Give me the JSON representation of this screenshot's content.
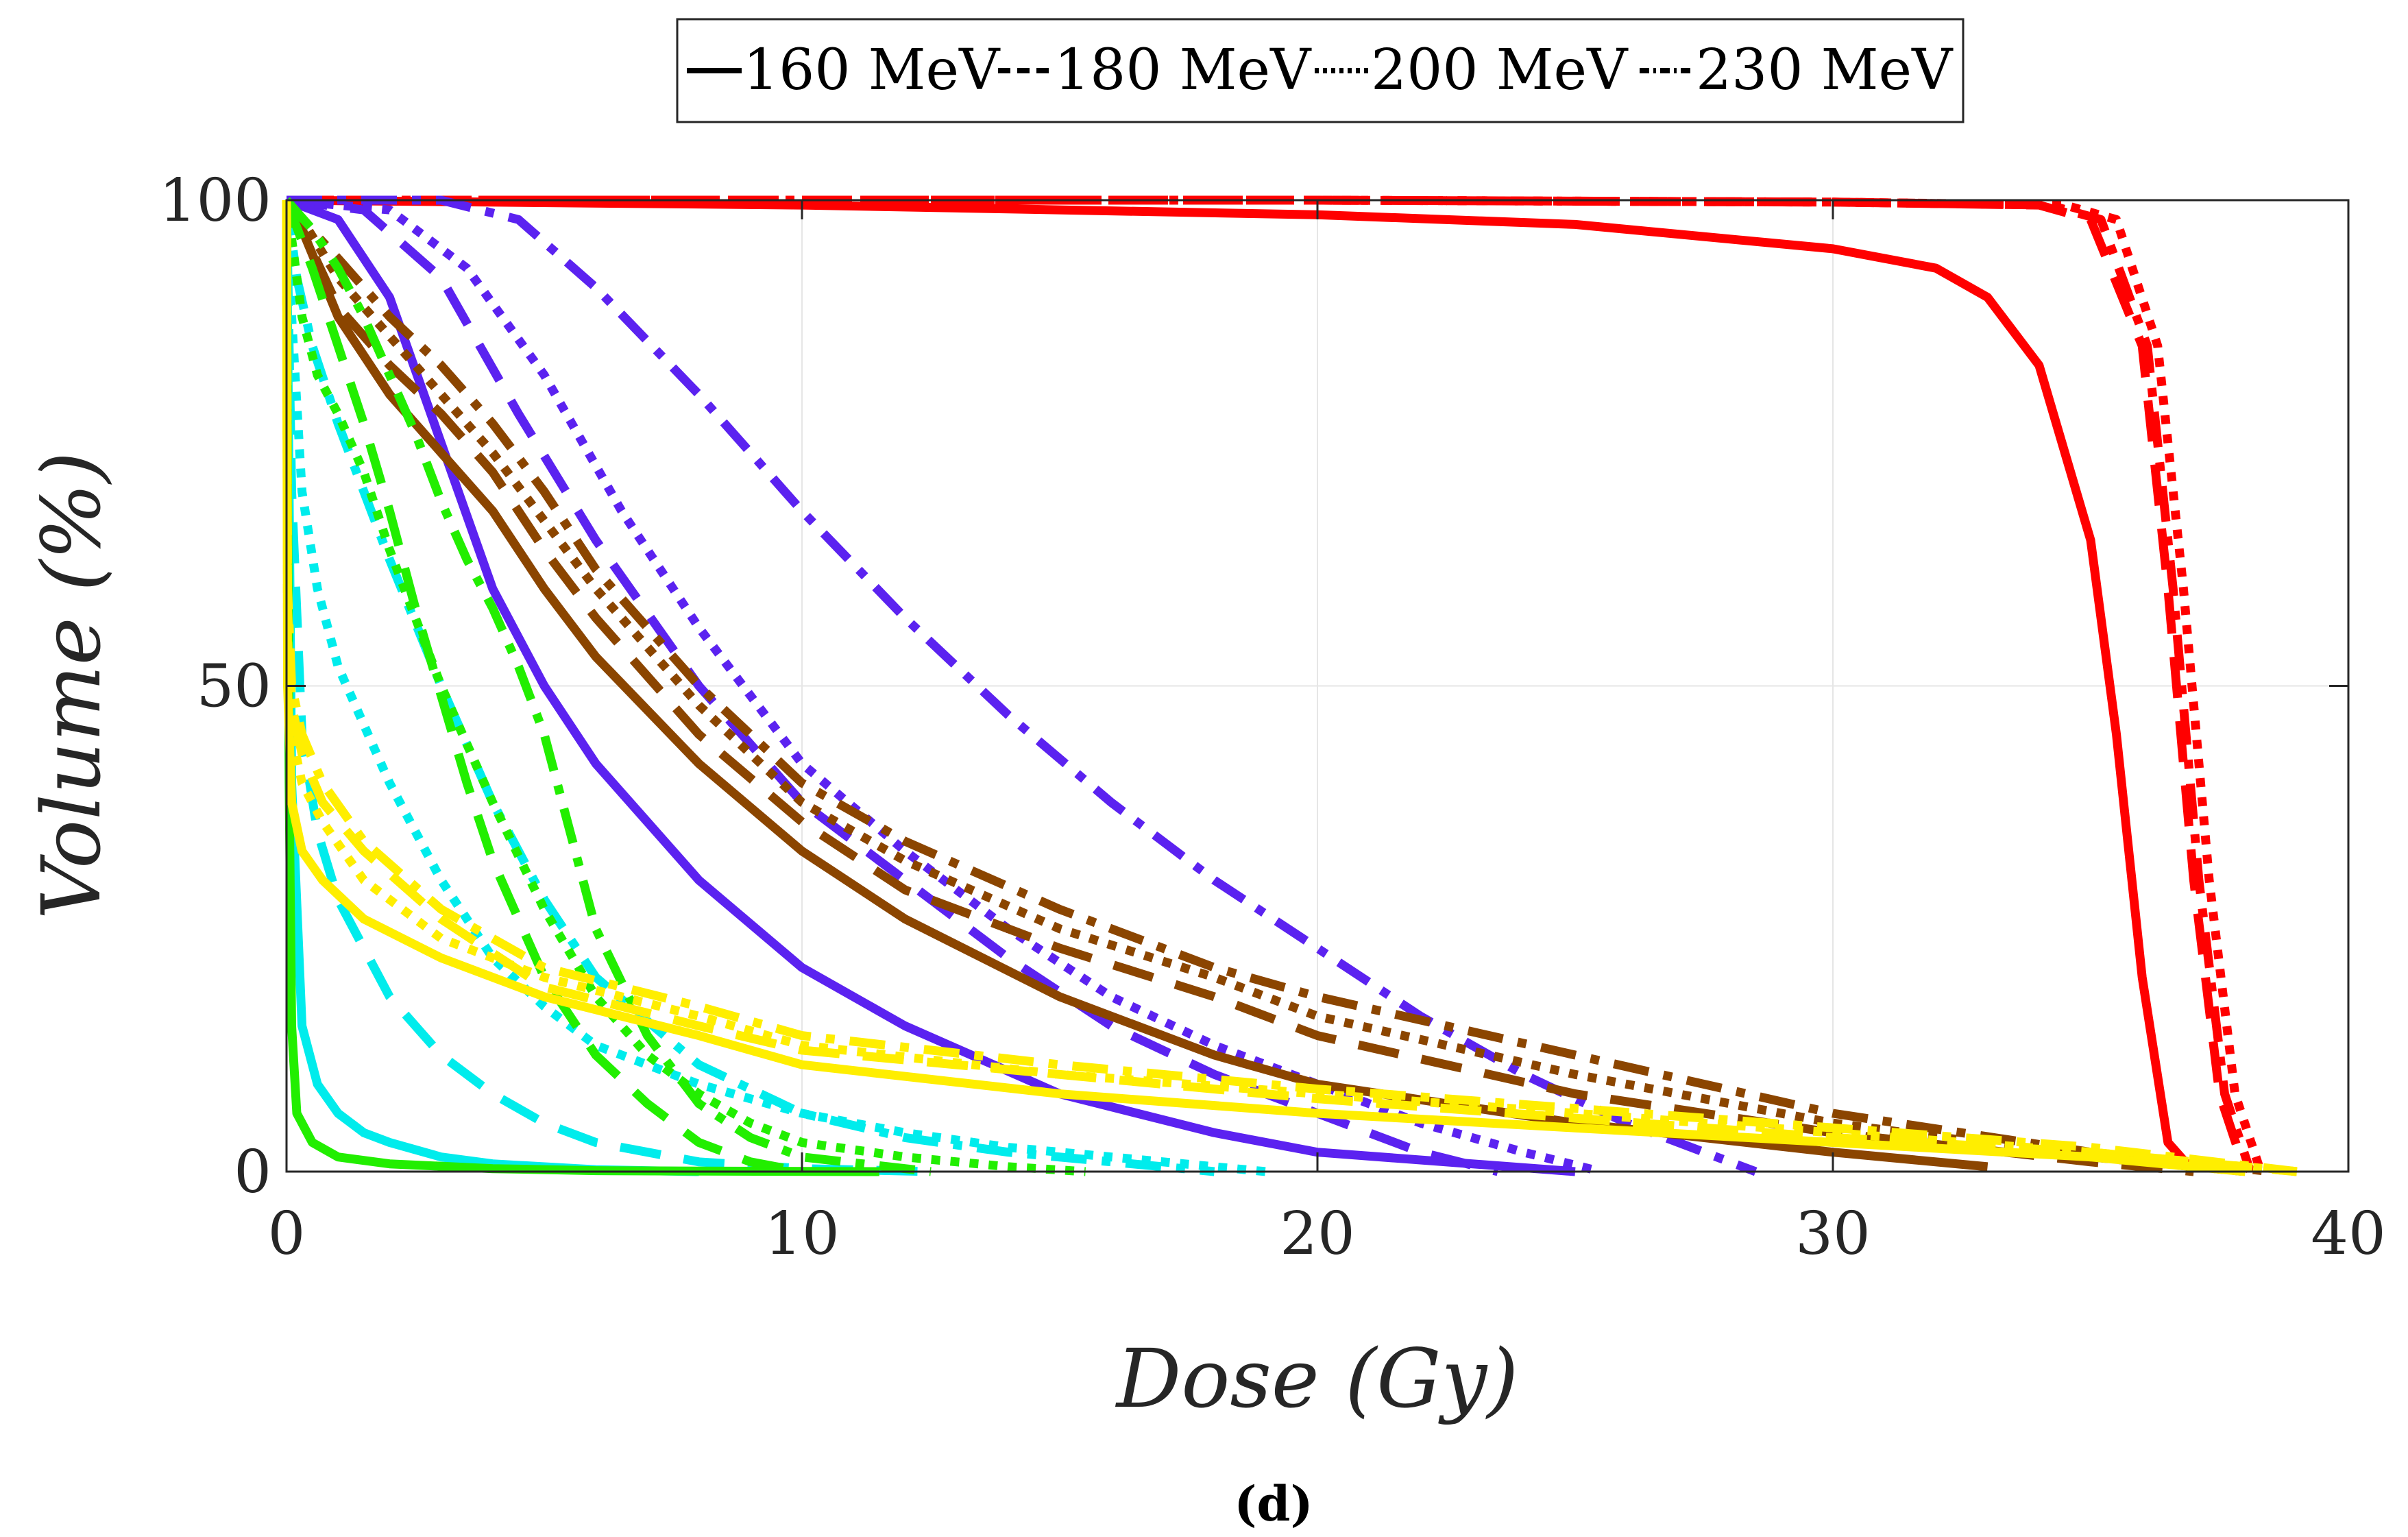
{
  "chart_data": {
    "type": "line",
    "title": "",
    "xlabel": "Dose (Gy)",
    "ylabel": "Volume (%)",
    "xlim": [
      0,
      40
    ],
    "ylim": [
      0,
      100
    ],
    "xticks": [
      "0",
      "10",
      "20",
      "30",
      "40"
    ],
    "yticks": [
      "0",
      "50",
      "100"
    ],
    "grid": true,
    "legend": {
      "position": "top",
      "entries": [
        {
          "label": "160 MeV",
          "style": "solid"
        },
        {
          "label": "180 MeV",
          "style": "dashed"
        },
        {
          "label": "200 MeV",
          "style": "dotted"
        },
        {
          "label": "230 MeV",
          "style": "dashdot"
        }
      ]
    },
    "caption": "(d)",
    "series": [
      {
        "name": "red 160 MeV",
        "color": "#ff0000",
        "style": "solid",
        "x": [
          0,
          10,
          20,
          25,
          30,
          32,
          33,
          34,
          35,
          35.5,
          36,
          36.5,
          37
        ],
        "y": [
          100,
          99.5,
          98.5,
          97.5,
          95,
          93,
          90,
          83,
          65,
          45,
          20,
          3,
          0
        ]
      },
      {
        "name": "red 180 MeV",
        "color": "#ff0000",
        "style": "dashed",
        "x": [
          0,
          10,
          20,
          30,
          34,
          35,
          36,
          36.5,
          37,
          37.5,
          38
        ],
        "y": [
          100,
          100,
          100,
          99.8,
          99.5,
          98,
          85,
          60,
          30,
          8,
          0
        ]
      },
      {
        "name": "red 200 MeV",
        "color": "#ff0000",
        "style": "dotted",
        "x": [
          0,
          10,
          20,
          30,
          34.5,
          35.5,
          36.3,
          36.8,
          37.3,
          37.8,
          38.3
        ],
        "y": [
          100,
          100,
          100,
          99.8,
          99.5,
          98,
          85,
          60,
          30,
          8,
          0
        ]
      },
      {
        "name": "red 230 MeV",
        "color": "#ff0000",
        "style": "dashdot",
        "x": [
          0,
          10,
          20,
          30,
          34.2,
          35.2,
          36.1,
          36.6,
          37.1,
          37.6,
          38.1
        ],
        "y": [
          100,
          100,
          100,
          99.8,
          99.5,
          98,
          85,
          60,
          30,
          8,
          0
        ]
      },
      {
        "name": "violet 160 MeV",
        "color": "#5b22f0",
        "style": "solid",
        "x": [
          0,
          1,
          2,
          3,
          4,
          5,
          6,
          8,
          10,
          12,
          15,
          18,
          20,
          25
        ],
        "y": [
          100,
          98,
          90,
          75,
          60,
          50,
          42,
          30,
          21,
          15,
          8,
          4,
          2,
          0
        ]
      },
      {
        "name": "violet 180 MeV",
        "color": "#5b22f0",
        "style": "dashed",
        "x": [
          0,
          1.5,
          3,
          4.5,
          6,
          8,
          10,
          12,
          14,
          16,
          18,
          20,
          22,
          23.5
        ],
        "y": [
          100,
          99,
          92,
          78,
          65,
          50,
          38,
          30,
          22,
          15,
          10,
          6,
          2,
          0
        ]
      },
      {
        "name": "violet 200 MeV",
        "color": "#5b22f0",
        "style": "dotted",
        "x": [
          0,
          2,
          3.5,
          5,
          6.5,
          8,
          10,
          12,
          14,
          16,
          18,
          20,
          22,
          24,
          25.5
        ],
        "y": [
          100,
          99,
          93,
          82,
          68,
          56,
          42,
          33,
          25,
          18,
          13,
          9,
          5,
          2,
          0
        ]
      },
      {
        "name": "violet 230 MeV",
        "color": "#5b22f0",
        "style": "dashdot",
        "x": [
          0,
          3,
          4.5,
          6,
          8,
          10,
          12,
          14,
          16,
          18,
          20,
          22,
          24,
          26,
          28.5
        ],
        "y": [
          100,
          100,
          98,
          91,
          80,
          68,
          57,
          47,
          38,
          30,
          23,
          16,
          10,
          5,
          0
        ]
      },
      {
        "name": "brown 160 MeV",
        "color": "#8b4500",
        "style": "solid",
        "x": [
          0,
          0.3,
          1,
          2,
          3,
          4,
          5,
          6,
          8,
          10,
          12,
          15,
          18,
          20,
          25,
          30,
          33
        ],
        "y": [
          100,
          97,
          88,
          80,
          74,
          68,
          60,
          53,
          42,
          33,
          26,
          18,
          12,
          9,
          5,
          2,
          0.5
        ]
      },
      {
        "name": "brown 180 MeV",
        "color": "#8b4500",
        "style": "dashed",
        "x": [
          0,
          0.3,
          1,
          2,
          3,
          4,
          5,
          6,
          8,
          10,
          12,
          15,
          18,
          20,
          25,
          30,
          35,
          37
        ],
        "y": [
          100,
          97,
          89,
          83,
          78,
          72,
          64,
          57,
          45,
          36,
          29,
          23,
          18,
          14,
          8,
          4,
          1,
          0
        ]
      },
      {
        "name": "brown 200 MeV",
        "color": "#8b4500",
        "style": "dotted",
        "x": [
          0,
          0.3,
          1,
          2,
          3,
          4,
          5,
          6,
          8,
          10,
          12,
          15,
          18,
          20,
          25,
          30,
          35,
          38
        ],
        "y": [
          100,
          98,
          92,
          86,
          80,
          74,
          67,
          60,
          48,
          38,
          32,
          25,
          20,
          16,
          10,
          5,
          1.5,
          0
        ]
      },
      {
        "name": "brown 230 MeV",
        "color": "#8b4500",
        "style": "dashdot",
        "x": [
          0,
          0.3,
          1,
          2,
          3,
          4,
          5,
          6,
          8,
          10,
          12,
          15,
          18,
          20,
          25,
          30,
          35,
          38.5
        ],
        "y": [
          100,
          98,
          94,
          88,
          83,
          77,
          70,
          62,
          50,
          40,
          34,
          27,
          21,
          18,
          12,
          6,
          2,
          0
        ]
      },
      {
        "name": "cyan 160 MeV",
        "color": "#00ecec",
        "style": "solid",
        "x": [
          0,
          0.1,
          0.3,
          0.6,
          1,
          1.5,
          2,
          3,
          4,
          6,
          8
        ],
        "y": [
          100,
          40,
          15,
          9,
          6,
          4,
          3,
          1.5,
          0.8,
          0.2,
          0
        ]
      },
      {
        "name": "cyan 180 MeV",
        "color": "#00ecec",
        "style": "dashed",
        "x": [
          0,
          0.1,
          0.3,
          0.6,
          1,
          2,
          3,
          4,
          5,
          6,
          8,
          10,
          12.5
        ],
        "y": [
          100,
          70,
          45,
          35,
          28,
          18,
          12,
          8,
          5,
          3,
          1,
          0.3,
          0
        ]
      },
      {
        "name": "cyan 200 MeV",
        "color": "#00ecec",
        "style": "dotted",
        "x": [
          0,
          0.1,
          0.3,
          0.6,
          1,
          2,
          3,
          4,
          5,
          6,
          8,
          10,
          12,
          14,
          16,
          18,
          19
        ],
        "y": [
          100,
          88,
          70,
          60,
          52,
          40,
          30,
          22,
          17,
          13,
          9,
          6,
          4,
          2.5,
          1.5,
          0.5,
          0
        ]
      },
      {
        "name": "cyan 230 MeV",
        "color": "#00ecec",
        "style": "dashdot",
        "x": [
          0,
          0.2,
          0.5,
          1,
          1.5,
          2,
          3,
          4,
          5,
          6,
          8,
          10,
          12,
          14,
          16,
          18
        ],
        "y": [
          100,
          92,
          85,
          77,
          70,
          63,
          50,
          38,
          28,
          20,
          11,
          6,
          3.5,
          2,
          1,
          0
        ]
      },
      {
        "name": "green 160 MeV",
        "color": "#22ee00",
        "style": "solid",
        "x": [
          0,
          0.02,
          0.05,
          0.1,
          0.2,
          0.5,
          1,
          2,
          4,
          6,
          8,
          11.5
        ],
        "y": [
          100,
          70,
          40,
          15,
          6,
          3,
          1.5,
          0.8,
          0.3,
          0.1,
          0.05,
          0
        ]
      },
      {
        "name": "green 180 MeV",
        "color": "#22ee00",
        "style": "dashed",
        "x": [
          0,
          0.5,
          1,
          1.5,
          2,
          2.5,
          3,
          3.5,
          4,
          5,
          6,
          7,
          8,
          9,
          10
        ],
        "y": [
          100,
          93,
          85,
          77,
          68,
          58,
          49,
          40,
          32,
          20,
          12,
          7,
          3,
          1,
          0
        ]
      },
      {
        "name": "green 200 MeV",
        "color": "#22ee00",
        "style": "dotted",
        "x": [
          0,
          0.3,
          0.6,
          1,
          1.5,
          2,
          3,
          4,
          5,
          6,
          7,
          8,
          9,
          10,
          12,
          14,
          15.5
        ],
        "y": [
          100,
          88,
          82,
          78,
          72,
          64,
          50,
          38,
          27,
          18,
          12,
          8,
          5,
          3,
          1.5,
          0.5,
          0
        ]
      },
      {
        "name": "green 230 MeV",
        "color": "#22ee00",
        "style": "dashdot",
        "x": [
          0,
          0.5,
          1,
          1.5,
          2,
          2.5,
          3,
          3.5,
          4,
          4.5,
          5,
          5.5,
          6,
          7,
          8,
          9,
          10,
          12.5
        ],
        "y": [
          100,
          97,
          93,
          88,
          82,
          76,
          69,
          63,
          58,
          52,
          45,
          35,
          25,
          14,
          7,
          3.5,
          1.5,
          0
        ]
      },
      {
        "name": "yellow 160 MeV",
        "color": "#ffee00",
        "style": "solid",
        "x": [
          0,
          0.02,
          0.1,
          0.3,
          0.7,
          1.5,
          3,
          5,
          8,
          10,
          15,
          20,
          25,
          30,
          35,
          38
        ],
        "y": [
          100,
          50,
          38,
          33,
          30,
          26,
          22,
          18,
          14,
          11,
          8,
          6,
          4.5,
          3,
          1.5,
          0
        ]
      },
      {
        "name": "yellow 180 MeV",
        "color": "#ffee00",
        "style": "dashed",
        "x": [
          0,
          0.02,
          0.1,
          0.3,
          0.7,
          1.5,
          3,
          5,
          8,
          10,
          15,
          20,
          25,
          30,
          35,
          39
        ],
        "y": [
          100,
          58,
          48,
          43,
          38,
          33,
          26,
          19,
          15,
          12.5,
          10,
          7.5,
          5.5,
          3.5,
          2,
          0
        ]
      },
      {
        "name": "yellow 200 MeV",
        "color": "#ffee00",
        "style": "dotted",
        "x": [
          0,
          0.02,
          0.1,
          0.3,
          0.7,
          1.5,
          3,
          5,
          8,
          10,
          15,
          20,
          25,
          30,
          35,
          39
        ],
        "y": [
          100,
          55,
          45,
          40,
          36,
          30,
          24,
          20,
          16,
          13,
          10,
          8,
          6,
          4,
          2,
          0
        ]
      },
      {
        "name": "yellow 230 MeV",
        "color": "#ffee00",
        "style": "dashdot",
        "x": [
          0,
          0.02,
          0.1,
          0.3,
          0.7,
          1.5,
          3,
          5,
          8,
          10,
          15,
          20,
          25,
          30,
          35,
          39
        ],
        "y": [
          100,
          60,
          50,
          45,
          40,
          34,
          27,
          21,
          17,
          14,
          11,
          8.5,
          6.5,
          4.5,
          2.5,
          0
        ]
      }
    ]
  }
}
